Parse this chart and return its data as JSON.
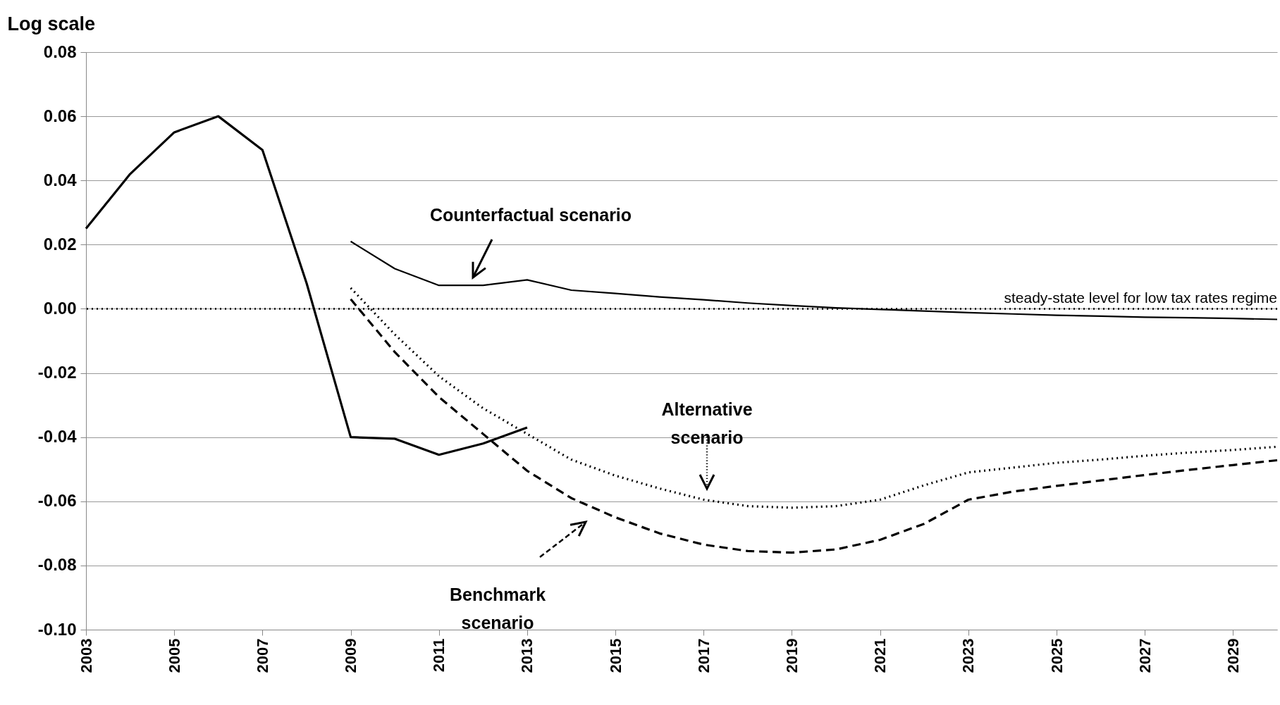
{
  "chart_data": {
    "type": "line",
    "ylabel": "Log scale",
    "xlim": [
      2003,
      2030
    ],
    "xticks": [
      2003,
      2005,
      2007,
      2009,
      2011,
      2013,
      2015,
      2017,
      2019,
      2021,
      2023,
      2025,
      2027,
      2029
    ],
    "ylim": [
      -0.1,
      0.08
    ],
    "yticks": [
      {
        "value": -0.1,
        "label": "-0.10"
      },
      {
        "value": -0.08,
        "label": "-0.08"
      },
      {
        "value": -0.06,
        "label": "-0.06"
      },
      {
        "value": -0.04,
        "label": "-0.04"
      },
      {
        "value": -0.02,
        "label": "-0.02"
      },
      {
        "value": 0,
        "label": "0.00"
      },
      {
        "value": 0.02,
        "label": "0.02"
      },
      {
        "value": 0.04,
        "label": "0.04"
      },
      {
        "value": 0.06,
        "label": "0.06"
      },
      {
        "value": 0.08,
        "label": "0.08"
      }
    ],
    "grid": "y",
    "marker": "none",
    "series": [
      {
        "color": "#000000",
        "line_style": "solid",
        "x": [
          2003,
          2004,
          2005,
          2006,
          2007,
          2008,
          2009,
          2010,
          2011,
          2012,
          2013
        ],
        "values": [
          0.025,
          0.042,
          0.055,
          0.06,
          0.0495,
          0.008,
          -0.04,
          -0.0405,
          -0.0455,
          -0.042,
          -0.037
        ]
      },
      {
        "color": "#000000",
        "line_style": "solid",
        "x": [
          2009,
          2010,
          2011,
          2012,
          2013,
          2014,
          2015,
          2016,
          2017,
          2018,
          2019,
          2020,
          2021,
          2022,
          2023,
          2024,
          2025,
          2026,
          2027,
          2028,
          2029,
          2030
        ],
        "values": [
          0.021,
          0.0125,
          0.0073,
          0.0073,
          0.009,
          0.0058,
          0.0048,
          0.0037,
          0.0028,
          0.0018,
          0.001,
          0.0003,
          -0.0002,
          -0.0007,
          -0.0012,
          -0.0016,
          -0.002,
          -0.0023,
          -0.0026,
          -0.0028,
          -0.003,
          -0.0033
        ]
      },
      {
        "color": "#000000",
        "line_style": "dotted",
        "x": [
          2009,
          2010,
          2011,
          2012,
          2013,
          2014,
          2015,
          2016,
          2017,
          2018,
          2019,
          2020,
          2021,
          2022,
          2023,
          2024,
          2025,
          2026,
          2027,
          2028,
          2029,
          2030
        ],
        "values": [
          0.0065,
          -0.008,
          -0.021,
          -0.031,
          -0.039,
          -0.047,
          -0.052,
          -0.056,
          -0.0595,
          -0.0615,
          -0.062,
          -0.0615,
          -0.0595,
          -0.055,
          -0.051,
          -0.0495,
          -0.048,
          -0.047,
          -0.0458,
          -0.0448,
          -0.044,
          -0.043
        ]
      },
      {
        "color": "#000000",
        "line_style": "dashed",
        "x": [
          2009,
          2010,
          2011,
          2012,
          2013,
          2014,
          2015,
          2016,
          2017,
          2018,
          2019,
          2020,
          2021,
          2022,
          2023,
          2024,
          2025,
          2026,
          2027,
          2028,
          2029,
          2030
        ],
        "values": [
          0.003,
          -0.0135,
          -0.0275,
          -0.039,
          -0.0505,
          -0.059,
          -0.065,
          -0.07,
          -0.0735,
          -0.0755,
          -0.076,
          -0.075,
          -0.072,
          -0.067,
          -0.0595,
          -0.057,
          -0.0552,
          -0.0535,
          -0.0518,
          -0.0502,
          -0.0487,
          -0.0472
        ]
      }
    ],
    "ref_lines": [
      {
        "axis": "y",
        "value": 0,
        "label": "steady-state level for low tax rates regime",
        "line_style": "dotted",
        "color": "#000000"
      }
    ],
    "annotations": [
      "Counterfactual scenario",
      "Alternative\nscenario",
      "Benchmark\nscenario"
    ]
  }
}
